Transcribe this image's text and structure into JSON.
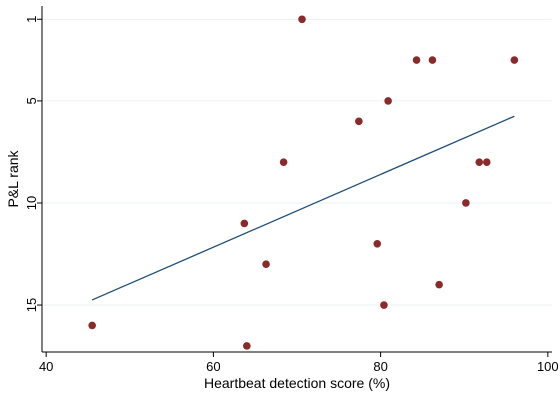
{
  "chart_data": {
    "type": "scatter",
    "xlabel": "Heartbeat detection score (%)",
    "ylabel": "P&L rank",
    "xlim": [
      39.5,
      100.5
    ],
    "ylim": [
      17.3,
      0.35
    ],
    "y_reversed": true,
    "grid": true,
    "grid_axis": "y",
    "x_ticks": [
      40,
      60,
      80,
      100
    ],
    "y_ticks": [
      1,
      5,
      10,
      15
    ],
    "colors": {
      "points": "#8b2a2b",
      "fit_line": "#1f4e79",
      "grid": "#eaf2f3",
      "axis": "#000000"
    },
    "series": [
      {
        "type": "scatter",
        "points": [
          {
            "x": 70.6,
            "y": 1
          },
          {
            "x": 84.3,
            "y": 3
          },
          {
            "x": 86.2,
            "y": 3
          },
          {
            "x": 96.0,
            "y": 3
          },
          {
            "x": 80.9,
            "y": 5
          },
          {
            "x": 77.4,
            "y": 6
          },
          {
            "x": 68.4,
            "y": 8
          },
          {
            "x": 91.8,
            "y": 8
          },
          {
            "x": 92.7,
            "y": 8
          },
          {
            "x": 90.2,
            "y": 10
          },
          {
            "x": 63.7,
            "y": 11
          },
          {
            "x": 79.6,
            "y": 12
          },
          {
            "x": 66.3,
            "y": 13
          },
          {
            "x": 87.0,
            "y": 14
          },
          {
            "x": 80.4,
            "y": 15
          },
          {
            "x": 45.5,
            "y": 16
          },
          {
            "x": 64.0,
            "y": 17
          }
        ]
      },
      {
        "type": "line",
        "points": [
          {
            "x": 45.5,
            "y": 14.75
          },
          {
            "x": 96.0,
            "y": 5.75
          }
        ]
      }
    ]
  }
}
